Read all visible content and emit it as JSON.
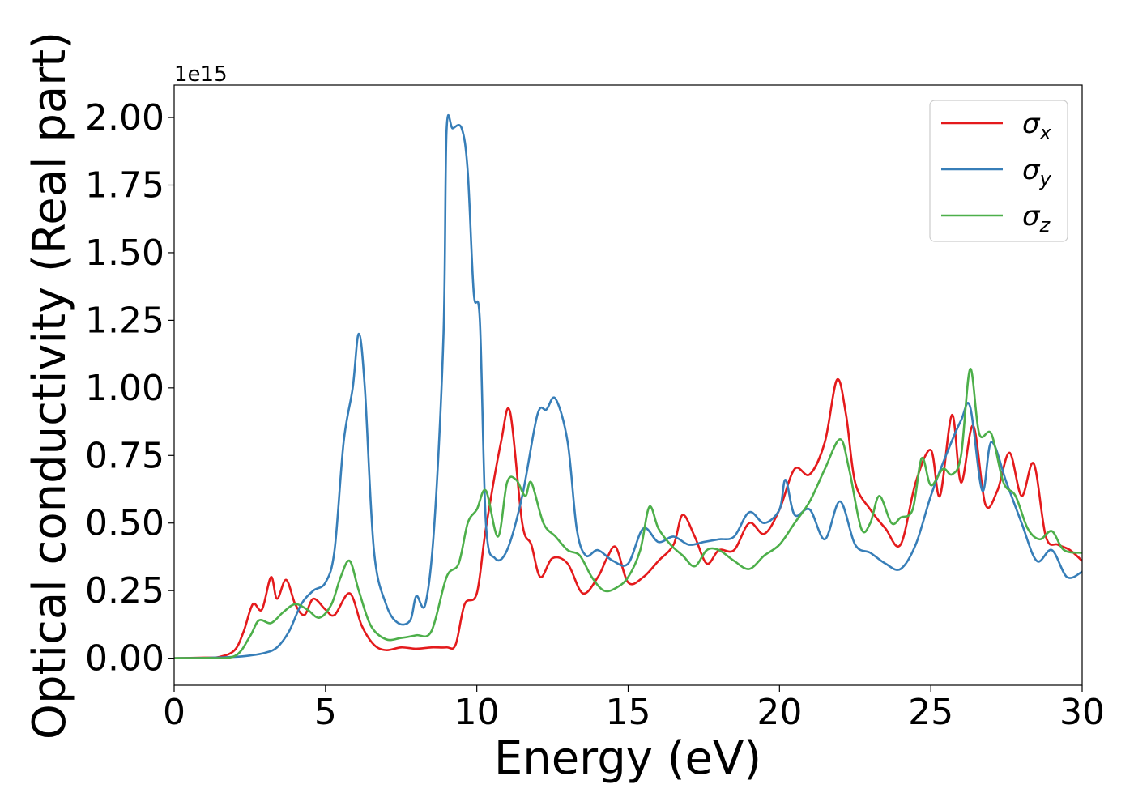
{
  "chart_data": {
    "type": "line",
    "xlabel": "Energy (eV)",
    "ylabel": "Optical conductivity (Real part)",
    "offset_text": "1e15",
    "xlim": [
      0,
      30
    ],
    "ylim": [
      -0.1,
      2.12
    ],
    "xticks": [
      0,
      5,
      10,
      15,
      20,
      25,
      30
    ],
    "xtick_labels": [
      "0",
      "5",
      "10",
      "15",
      "20",
      "25",
      "30"
    ],
    "yticks": [
      0,
      0.25,
      0.5,
      0.75,
      1.0,
      1.25,
      1.5,
      1.75,
      2.0
    ],
    "ytick_labels": [
      "0.00",
      "0.25",
      "0.50",
      "0.75",
      "1.00",
      "1.25",
      "1.50",
      "1.75",
      "2.00"
    ],
    "grid": false,
    "legend_position": "top-right",
    "series": [
      {
        "name": "σx",
        "symbol": "σ",
        "subscript": "x",
        "color": "#e41a1c",
        "x": [
          0,
          1,
          1.5,
          2,
          2.3,
          2.6,
          2.9,
          3.2,
          3.4,
          3.7,
          4.0,
          4.3,
          4.6,
          5.0,
          5.3,
          5.8,
          6.2,
          6.6,
          7.0,
          7.5,
          8.0,
          8.5,
          9.0,
          9.3,
          9.6,
          10.0,
          10.3,
          10.8,
          11.1,
          11.5,
          11.8,
          12.1,
          12.5,
          13.0,
          13.5,
          14.0,
          14.3,
          14.6,
          15.0,
          15.5,
          16.0,
          16.5,
          16.8,
          17.2,
          17.6,
          18.0,
          18.5,
          19.0,
          19.5,
          20.0,
          20.5,
          21.0,
          21.5,
          21.9,
          22.2,
          22.5,
          23.0,
          23.5,
          24.0,
          24.5,
          25.0,
          25.3,
          25.7,
          26.0,
          26.4,
          26.8,
          27.2,
          27.6,
          28.0,
          28.4,
          28.8,
          29.2,
          29.6,
          30
        ],
        "y": [
          0,
          0.002,
          0.005,
          0.03,
          0.1,
          0.2,
          0.18,
          0.3,
          0.22,
          0.29,
          0.2,
          0.16,
          0.22,
          0.18,
          0.16,
          0.24,
          0.12,
          0.05,
          0.03,
          0.04,
          0.035,
          0.04,
          0.04,
          0.05,
          0.2,
          0.24,
          0.48,
          0.8,
          0.91,
          0.5,
          0.42,
          0.3,
          0.37,
          0.35,
          0.24,
          0.3,
          0.37,
          0.41,
          0.28,
          0.3,
          0.36,
          0.42,
          0.53,
          0.45,
          0.35,
          0.4,
          0.4,
          0.5,
          0.46,
          0.55,
          0.7,
          0.68,
          0.8,
          1.03,
          0.9,
          0.65,
          0.55,
          0.48,
          0.42,
          0.65,
          0.77,
          0.6,
          0.9,
          0.65,
          0.86,
          0.57,
          0.62,
          0.76,
          0.6,
          0.72,
          0.45,
          0.42,
          0.4,
          0.36
        ]
      },
      {
        "name": "σy",
        "symbol": "σ",
        "subscript": "y",
        "color": "#377eb8",
        "x": [
          0,
          1,
          2,
          2.5,
          3,
          3.4,
          3.8,
          4.2,
          4.6,
          5.0,
          5.3,
          5.6,
          5.9,
          6.1,
          6.3,
          6.6,
          7.0,
          7.4,
          7.8,
          8.0,
          8.3,
          8.6,
          8.9,
          9.0,
          9.2,
          9.5,
          9.7,
          9.9,
          10.1,
          10.3,
          10.6,
          11.0,
          11.5,
          12.0,
          12.3,
          12.6,
          13.0,
          13.3,
          13.6,
          14.0,
          14.5,
          15.0,
          15.5,
          16.0,
          16.5,
          17.0,
          17.5,
          18.0,
          18.5,
          19.0,
          19.5,
          20.0,
          20.2,
          20.5,
          21.0,
          21.5,
          22.0,
          22.5,
          23.0,
          23.5,
          24.0,
          24.5,
          25.0,
          25.5,
          26.0,
          26.3,
          26.7,
          27.0,
          27.5,
          28.0,
          28.5,
          29.0,
          29.5,
          30
        ],
        "y": [
          0,
          0.001,
          0.005,
          0.01,
          0.02,
          0.04,
          0.1,
          0.2,
          0.25,
          0.28,
          0.4,
          0.8,
          1.0,
          1.2,
          1.0,
          0.4,
          0.2,
          0.13,
          0.14,
          0.23,
          0.2,
          0.5,
          1.2,
          1.95,
          1.96,
          1.96,
          1.8,
          1.35,
          1.25,
          0.5,
          0.37,
          0.4,
          0.6,
          0.9,
          0.92,
          0.96,
          0.8,
          0.48,
          0.38,
          0.4,
          0.36,
          0.35,
          0.48,
          0.43,
          0.45,
          0.42,
          0.43,
          0.44,
          0.45,
          0.54,
          0.5,
          0.55,
          0.66,
          0.53,
          0.55,
          0.44,
          0.58,
          0.42,
          0.39,
          0.35,
          0.33,
          0.42,
          0.6,
          0.75,
          0.88,
          0.93,
          0.62,
          0.8,
          0.65,
          0.5,
          0.36,
          0.4,
          0.3,
          0.32
        ]
      },
      {
        "name": "σz",
        "symbol": "σ",
        "subscript": "z",
        "color": "#4daf4a",
        "x": [
          0,
          1,
          2,
          2.5,
          2.8,
          3.2,
          3.6,
          4.0,
          4.4,
          4.8,
          5.2,
          5.5,
          5.8,
          6.1,
          6.5,
          7.0,
          7.5,
          8.0,
          8.5,
          9.0,
          9.4,
          9.7,
          10.0,
          10.3,
          10.7,
          11.0,
          11.3,
          11.6,
          11.8,
          12.2,
          12.6,
          13.0,
          13.4,
          13.8,
          14.2,
          14.6,
          15.0,
          15.4,
          15.7,
          16.0,
          16.4,
          16.8,
          17.2,
          17.6,
          18.0,
          18.5,
          19.0,
          19.5,
          20.0,
          20.5,
          21.0,
          21.5,
          22.0,
          22.3,
          22.7,
          23.0,
          23.3,
          23.7,
          24.0,
          24.4,
          24.7,
          25.0,
          25.4,
          25.7,
          26.0,
          26.3,
          26.6,
          27.0,
          27.4,
          27.8,
          28.2,
          28.6,
          29.0,
          29.4,
          30
        ],
        "y": [
          0,
          0.001,
          0.008,
          0.08,
          0.14,
          0.13,
          0.17,
          0.2,
          0.18,
          0.15,
          0.2,
          0.3,
          0.36,
          0.25,
          0.12,
          0.07,
          0.075,
          0.085,
          0.1,
          0.3,
          0.35,
          0.5,
          0.55,
          0.62,
          0.45,
          0.65,
          0.66,
          0.6,
          0.65,
          0.5,
          0.45,
          0.4,
          0.38,
          0.3,
          0.25,
          0.26,
          0.3,
          0.4,
          0.56,
          0.48,
          0.42,
          0.38,
          0.34,
          0.4,
          0.4,
          0.36,
          0.33,
          0.38,
          0.42,
          0.5,
          0.58,
          0.7,
          0.81,
          0.7,
          0.48,
          0.5,
          0.6,
          0.5,
          0.52,
          0.55,
          0.74,
          0.64,
          0.7,
          0.68,
          0.75,
          1.07,
          0.83,
          0.83,
          0.65,
          0.6,
          0.48,
          0.44,
          0.47,
          0.4,
          0.39
        ]
      }
    ]
  }
}
